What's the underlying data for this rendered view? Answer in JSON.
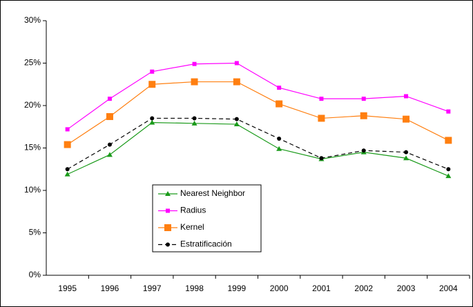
{
  "chart_data": {
    "type": "line",
    "categories": [
      "1995",
      "1996",
      "1997",
      "1998",
      "1999",
      "2000",
      "2001",
      "2002",
      "2003",
      "2004"
    ],
    "series": [
      {
        "name": "Nearest Neighbor",
        "color": "#1a9a1a",
        "marker": "triangle",
        "dashed": false,
        "values": [
          11.9,
          14.2,
          18.0,
          17.9,
          17.8,
          14.9,
          13.7,
          14.5,
          13.8,
          11.7
        ]
      },
      {
        "name": "Radius",
        "color": "#ff00ff",
        "marker": "square-small",
        "dashed": false,
        "values": [
          17.2,
          20.8,
          24.0,
          24.9,
          25.0,
          22.1,
          20.8,
          20.8,
          21.1,
          19.3
        ]
      },
      {
        "name": "Kernel",
        "color": "#ff7f10",
        "marker": "square",
        "dashed": false,
        "values": [
          15.4,
          18.7,
          22.5,
          22.8,
          22.8,
          20.2,
          18.5,
          18.8,
          18.4,
          15.9
        ]
      },
      {
        "name": "Estratificación",
        "color": "#000000",
        "marker": "circle",
        "dashed": true,
        "values": [
          12.5,
          15.4,
          18.5,
          18.5,
          18.4,
          16.1,
          13.8,
          14.7,
          14.5,
          12.5
        ]
      }
    ],
    "ylim": [
      0,
      30
    ],
    "yticks": [
      {
        "value": 0,
        "label": "0%"
      },
      {
        "value": 5,
        "label": "5%"
      },
      {
        "value": 10,
        "label": "10%"
      },
      {
        "value": 15,
        "label": "15%"
      },
      {
        "value": 20,
        "label": "20%"
      },
      {
        "value": 25,
        "label": "25%"
      },
      {
        "value": 30,
        "label": "30%"
      }
    ],
    "grid": false
  }
}
